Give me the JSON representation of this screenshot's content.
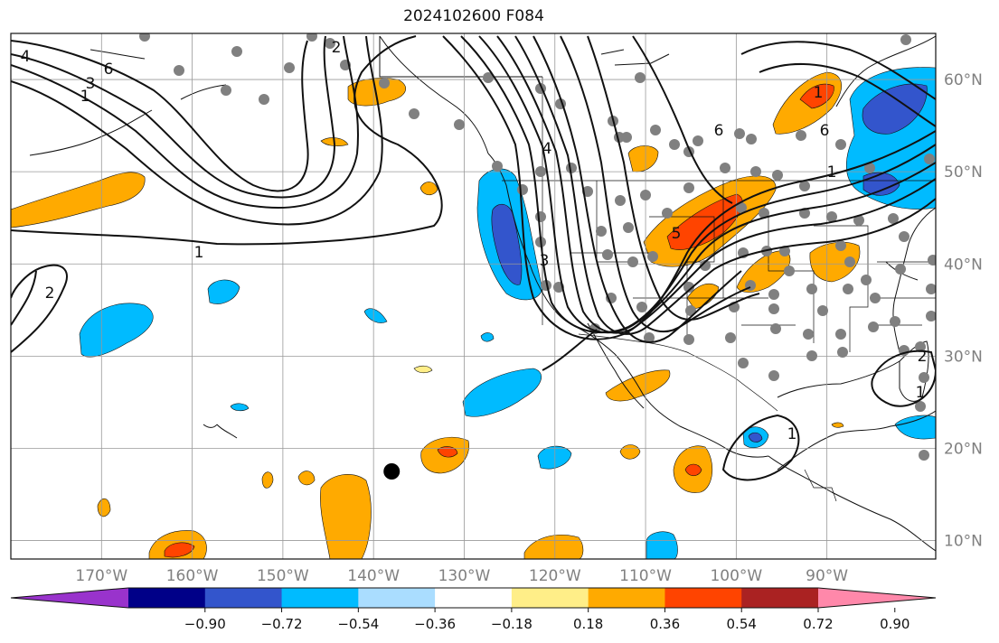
{
  "title": "2024102600 F084",
  "map": {
    "projection": "plate-carree",
    "lon_range": [
      -180,
      -78
    ],
    "lat_range": [
      8,
      65
    ],
    "grid": true,
    "lon_ticks": [
      {
        "value": -170,
        "label": "170°W"
      },
      {
        "value": -160,
        "label": "160°W"
      },
      {
        "value": -150,
        "label": "150°W"
      },
      {
        "value": -140,
        "label": "140°W"
      },
      {
        "value": -130,
        "label": "130°W"
      },
      {
        "value": -120,
        "label": "120°W"
      },
      {
        "value": -110,
        "label": "110°W"
      },
      {
        "value": -100,
        "label": "100°W"
      },
      {
        "value": -90,
        "label": "90°W"
      }
    ],
    "lat_ticks": [
      {
        "value": 60,
        "label": "60°N"
      },
      {
        "value": 50,
        "label": "50°N"
      },
      {
        "value": 40,
        "label": "40°N"
      },
      {
        "value": 30,
        "label": "30°N"
      },
      {
        "value": 20,
        "label": "20°N"
      },
      {
        "value": 10,
        "label": "10°N"
      }
    ],
    "contour_labels": [
      "4",
      "6",
      "3",
      "1",
      "2",
      "1",
      "2",
      "4",
      "3",
      "6",
      "1",
      "5",
      "6",
      "1",
      "1",
      "2",
      "1"
    ],
    "marker": {
      "lon": -138,
      "lat": 17.5
    }
  },
  "colorbar": {
    "colors": [
      "#9933cc",
      "#000088",
      "#3355cc",
      "#00bbff",
      "#aaddff",
      "#ffffff",
      "#ffee88",
      "#ffaa00",
      "#ff4400",
      "#aa2222",
      "#ff88aa"
    ],
    "tick_labels": [
      "−0.90",
      "−0.72",
      "−0.54",
      "−0.36",
      "−0.18",
      "0.18",
      "0.36",
      "0.54",
      "0.72",
      "0.90"
    ]
  }
}
